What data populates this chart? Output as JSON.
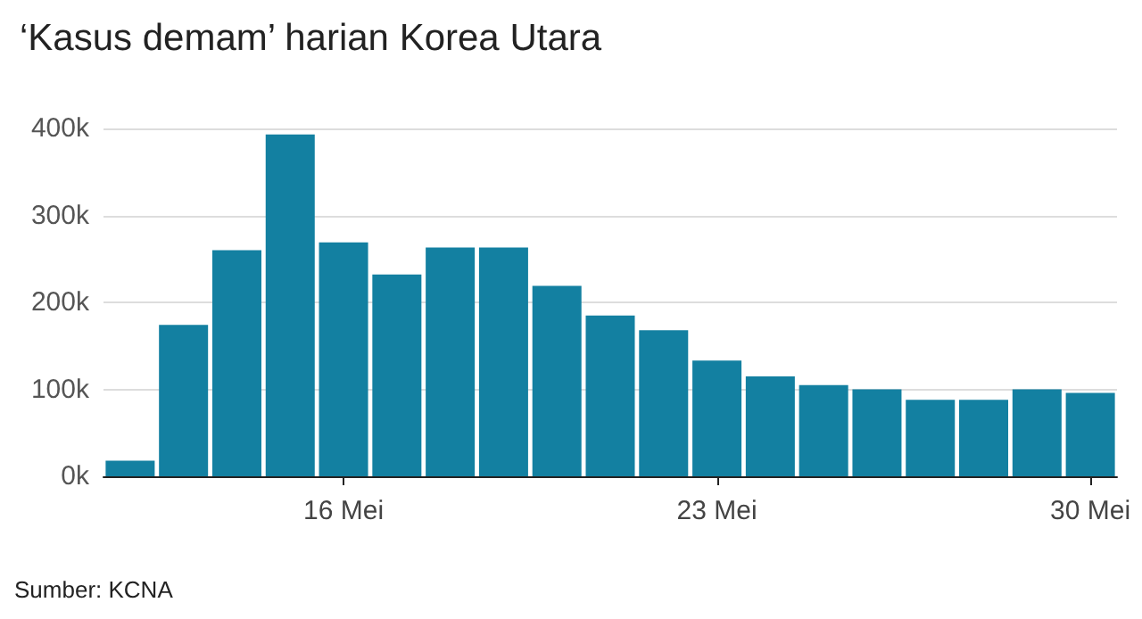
{
  "chart_data": {
    "type": "bar",
    "title": "‘Kasus demam’ harian Korea Utara",
    "categories": [
      null,
      null,
      null,
      null,
      "16 Mei",
      null,
      null,
      null,
      null,
      null,
      null,
      "23 Mei",
      null,
      null,
      null,
      null,
      null,
      null,
      "30 Mei"
    ],
    "values": [
      18000,
      174000,
      260000,
      393000,
      269000,
      232000,
      263000,
      263000,
      219000,
      185000,
      168000,
      133000,
      115000,
      105000,
      100000,
      88000,
      88000,
      100000,
      96000
    ],
    "color": "#1380a1",
    "ylim": [
      0,
      400000
    ],
    "yticks": [
      {
        "value": 0,
        "label": "0k"
      },
      {
        "value": 100000,
        "label": "100k"
      },
      {
        "value": 200000,
        "label": "200k"
      },
      {
        "value": 300000,
        "label": "300k"
      },
      {
        "value": 400000,
        "label": "400k"
      }
    ],
    "grid": "y",
    "annotations": [
      "Sumber: KCNA"
    ]
  }
}
